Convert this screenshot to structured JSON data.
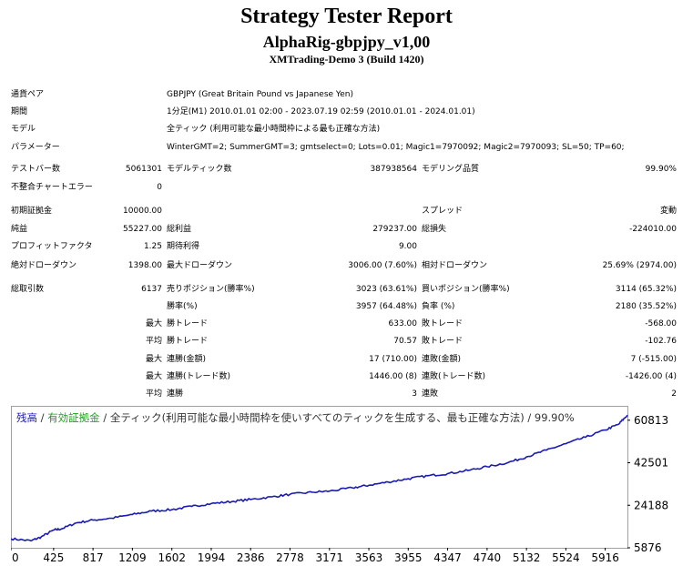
{
  "header": {
    "title": "Strategy Tester Report",
    "subtitle": "AlphaRig-gbpjpy_v1,00",
    "server": "XMTrading-Demo 3 (Build 1420)"
  },
  "info": {
    "symbol_label": "通貨ペア",
    "symbol_value": "GBPJPY (Great Britain Pound vs Japanese Yen)",
    "period_label": "期間",
    "period_value": "1分足(M1) 2010.01.01 02:00 - 2023.07.19 02:59 (2010.01.01 - 2024.01.01)",
    "model_label": "モデル",
    "model_value": "全ティック (利用可能な最小時間枠による最も正確な方法)",
    "params_label": "パラメーター",
    "params_value": "WinterGMT=2; SummerGMT=3; gmtselect=0; Lots=0.01; Magic1=7970092; Magic2=7970093; SL=50; TP=60;"
  },
  "stats": {
    "bars_label": "テストバー数",
    "bars_value": "5061301",
    "ticks_label": "モデルティック数",
    "ticks_value": "387938564",
    "quality_label": "モデリング品質",
    "quality_value": "99.90%",
    "mismatch_label": "不整合チャートエラー",
    "mismatch_value": "0",
    "deposit_label": "初期証拠金",
    "deposit_value": "10000.00",
    "spread_label": "スプレッド",
    "spread_value": "変動",
    "net_label": "純益",
    "net_value": "55227.00",
    "gross_profit_label": "総利益",
    "gross_profit_value": "279237.00",
    "gross_loss_label": "総損失",
    "gross_loss_value": "-224010.00",
    "pf_label": "プロフィットファクタ",
    "pf_value": "1.25",
    "expected_label": "期待利得",
    "expected_value": "9.00",
    "abs_dd_label": "絶対ドローダウン",
    "abs_dd_value": "1398.00",
    "max_dd_label": "最大ドローダウン",
    "max_dd_value": "3006.00 (7.60%)",
    "rel_dd_label": "相対ドローダウン",
    "rel_dd_value": "25.69% (2974.00)",
    "total_label": "総取引数",
    "total_value": "6137",
    "short_label": "売りポジション(勝率%)",
    "short_value": "3023 (63.61%)",
    "long_label": "買いポジション(勝率%)",
    "long_value": "3114 (65.32%)",
    "winrate_label": "勝率(%)",
    "winrate_value": "3957 (64.48%)",
    "lossrate_label": "負率 (%)",
    "lossrate_value": "2180 (35.52%)",
    "largest": "最大",
    "largest_win_label": "勝トレード",
    "largest_win_value": "633.00",
    "largest_loss_label": "敗トレード",
    "largest_loss_value": "-568.00",
    "average": "平均",
    "avg_win_label": "勝トレード",
    "avg_win_value": "70.57",
    "avg_loss_label": "敗トレード",
    "avg_loss_value": "-102.76",
    "max1": "最大",
    "consec_wins_label": "連勝(金額)",
    "consec_wins_value": "17 (710.00)",
    "consec_losses_label": "連敗(金額)",
    "consec_losses_value": "7 (-515.00)",
    "max2": "最大",
    "consec_profit_label": "連勝(トレード数)",
    "consec_profit_value": "1446.00 (8)",
    "consec_loss_label": "連敗(トレード数)",
    "consec_loss_value": "-1426.00 (4)",
    "avg2": "平均",
    "avg_cwins_label": "連勝",
    "avg_cwins_value": "3",
    "avg_closses_label": "連敗",
    "avg_closses_value": "2"
  },
  "chart_data": {
    "type": "line",
    "legend": {
      "balance": "残高",
      "sep1": " / ",
      "equity": "有効証拠金",
      "sep2": " / ",
      "rest": "全ティック(利用可能な最小時間枠を使いすべてのティックを生成する、最も正確な方法) / 99.90%"
    },
    "colors": {
      "balance": "#1a1ab4",
      "equity": "#18a018",
      "axis": "#000000",
      "frame": "#a0a0a0"
    },
    "x_ticks": [
      0,
      425,
      817,
      1209,
      1602,
      1994,
      2386,
      2778,
      3171,
      3563,
      3955,
      4347,
      4740,
      5132,
      5524,
      5916
    ],
    "y_ticks": [
      "60813",
      "42501",
      "24188",
      "5876"
    ],
    "xlim": [
      0,
      6137
    ],
    "ylim": [
      5876,
      67000
    ],
    "series": [
      {
        "x": [
          0,
          200,
          300,
          425,
          500,
          650,
          817,
          1000,
          1209,
          1400,
          1602,
          1800,
          1994,
          2200,
          2386,
          2600,
          2778,
          3000,
          3171,
          3400,
          3563,
          3755,
          3955,
          4150,
          4347,
          4550,
          4740,
          4950,
          5132,
          5330,
          5524,
          5720,
          5916,
          6050,
          6137
        ],
        "y": [
          9800,
          8900,
          10500,
          13500,
          14000,
          16600,
          17800,
          18600,
          20200,
          21700,
          22300,
          23700,
          24900,
          25800,
          26700,
          27800,
          28900,
          29800,
          30300,
          31700,
          32800,
          34200,
          35600,
          36900,
          37800,
          39200,
          40800,
          42600,
          45000,
          47900,
          50700,
          53500,
          56600,
          59100,
          63000
        ]
      }
    ]
  }
}
